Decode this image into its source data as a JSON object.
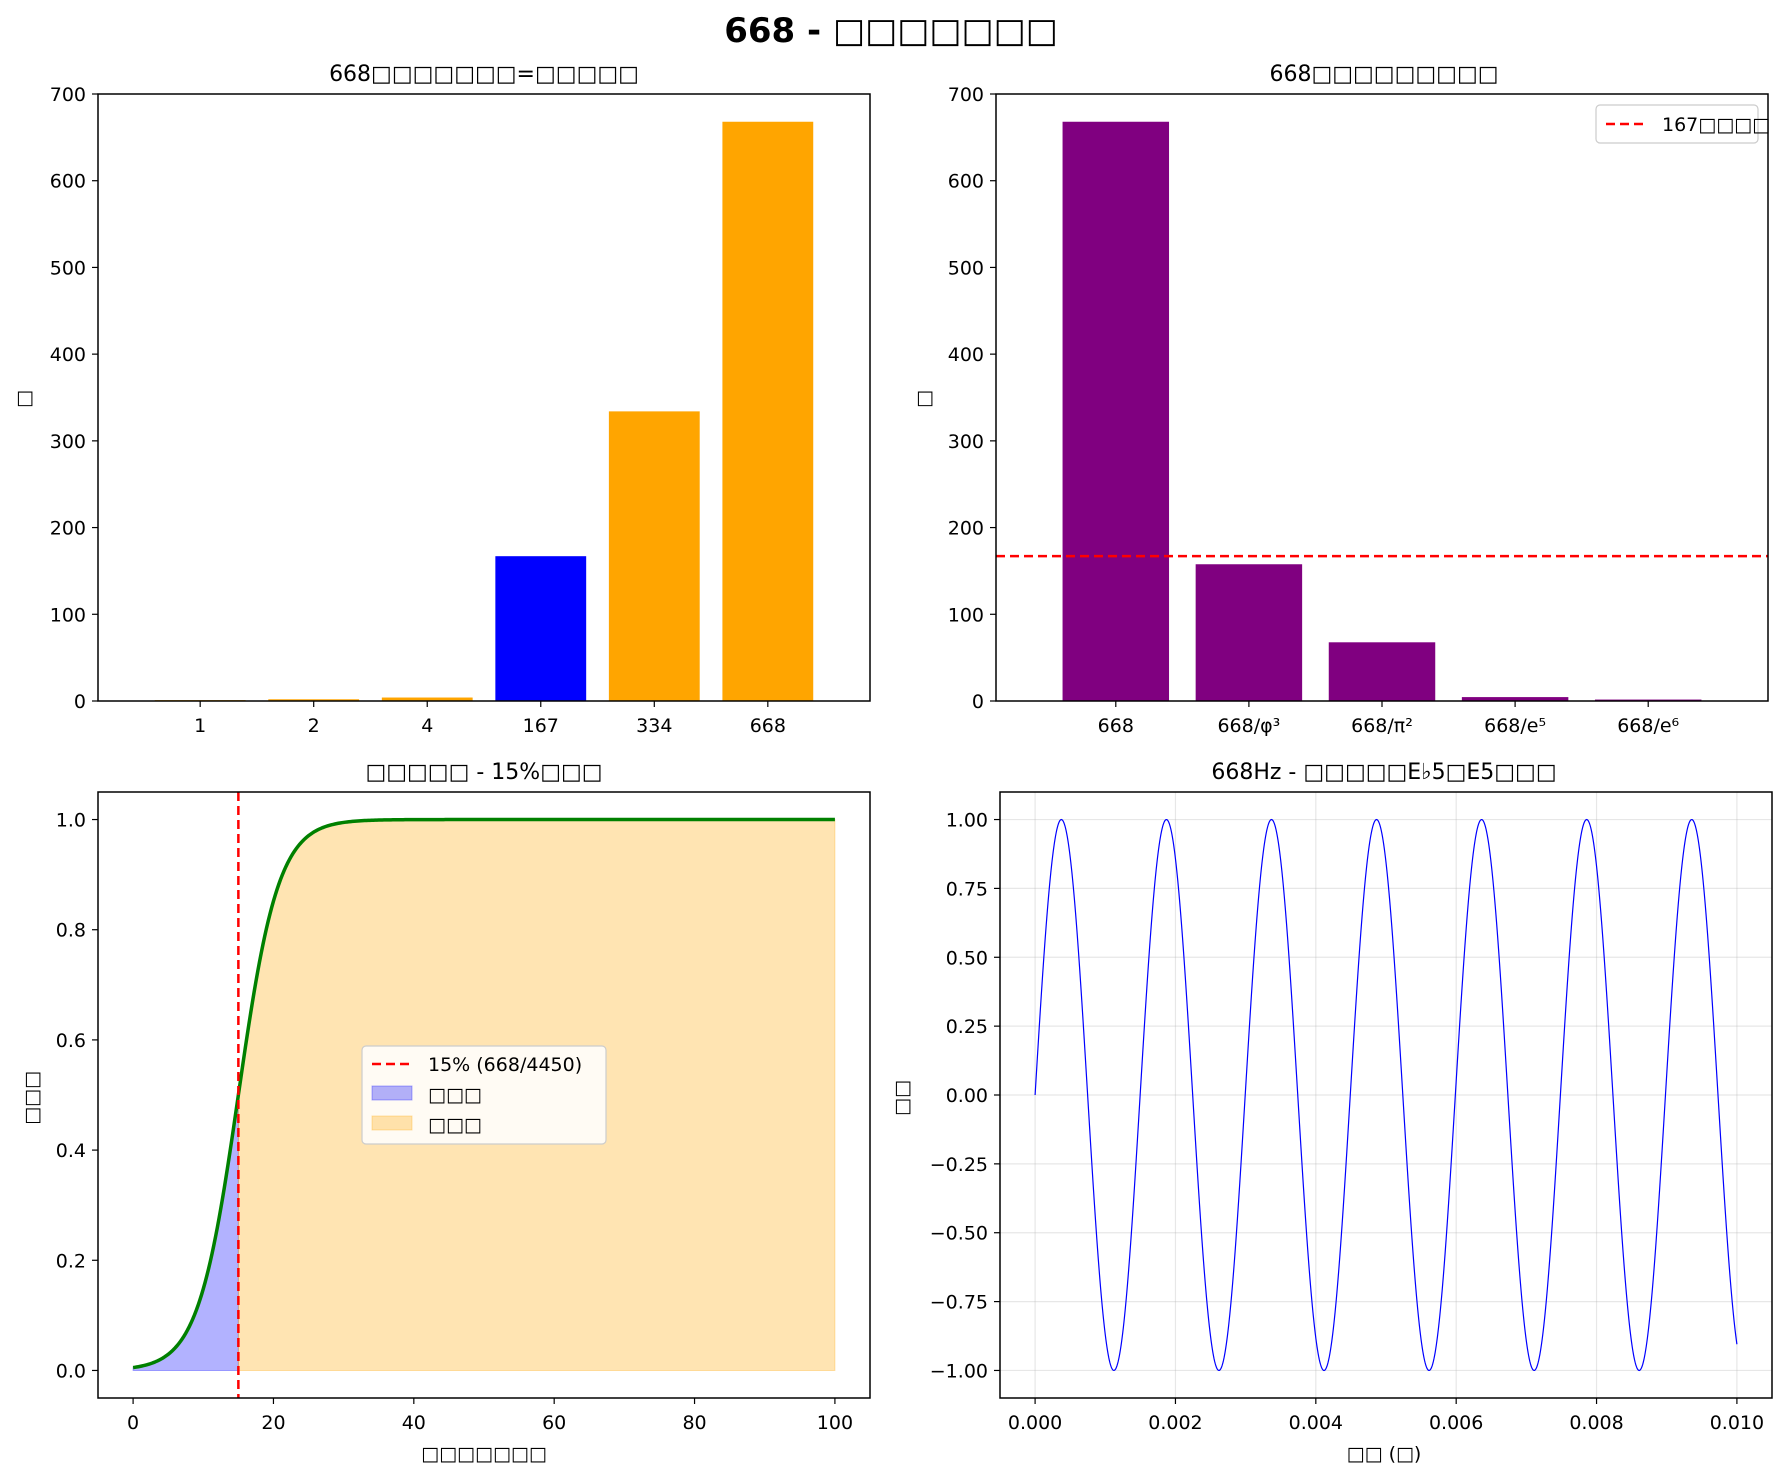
{
  "figure": {
    "suptitle": "668 - □□□□□□□"
  },
  "chart_data": [
    {
      "type": "bar",
      "title": "668□□□□□□□=□□□□□",
      "xlabel": "",
      "ylabel": "□",
      "categories": [
        "1",
        "2",
        "4",
        "167",
        "334",
        "668"
      ],
      "values": [
        1,
        2,
        4,
        167,
        334,
        668
      ],
      "colors": [
        "#ffa500",
        "#ffa500",
        "#ffa500",
        "#0000ff",
        "#ffa500",
        "#ffa500"
      ],
      "ylim": [
        0,
        700
      ],
      "yticks": [
        0,
        100,
        200,
        300,
        400,
        500,
        600,
        700
      ],
      "grid": false
    },
    {
      "type": "bar",
      "title": "668□□□□□□□□□",
      "xlabel": "",
      "ylabel": "□",
      "categories": [
        "668",
        "668/φ³",
        "668/π²",
        "668/e⁵",
        "668/e⁶"
      ],
      "values": [
        668,
        157.7,
        67.7,
        4.5,
        1.66
      ],
      "colors": [
        "#800080",
        "#800080",
        "#800080",
        "#800080",
        "#800080"
      ],
      "ylim": [
        0,
        700
      ],
      "yticks": [
        0,
        100,
        200,
        300,
        400,
        500,
        600,
        700
      ],
      "reference_line": {
        "value": 167,
        "label": "167□□□□",
        "color": "#ff0000",
        "style": "dashed"
      },
      "legend": "top-right",
      "grid": false
    },
    {
      "type": "line",
      "title": "□□□□□ - 15%□□□",
      "xlabel": "□□□□□□□",
      "ylabel": "□□□",
      "xlim": [
        -5,
        105
      ],
      "ylim": [
        -0.05,
        1.05
      ],
      "xticks": [
        0,
        20,
        40,
        60,
        80,
        100
      ],
      "yticks": [
        0.0,
        0.2,
        0.4,
        0.6,
        0.8,
        1.0
      ],
      "curve": {
        "kind": "logistic",
        "midpoint": 15,
        "steepness": 0.35,
        "x_range": [
          0,
          100
        ],
        "color": "#008000"
      },
      "vline": {
        "value": 15,
        "label": "15% (668/4450)",
        "color": "#ff0000",
        "style": "dashed"
      },
      "fills": [
        {
          "label": "□□□",
          "from": 0,
          "to": 15,
          "color": "#0000ff",
          "alpha": 0.3
        },
        {
          "label": "□□□",
          "from": 15,
          "to": 100,
          "color": "#ffa500",
          "alpha": 0.3
        }
      ],
      "legend": "center",
      "grid": false
    },
    {
      "type": "line",
      "title": "668Hz - □□□□□E♭5□E5□□□",
      "xlabel": "□□ (□)",
      "ylabel": "□□",
      "frequency_hz": 668,
      "x_range": [
        0,
        0.01
      ],
      "xlim": [
        -0.0005,
        0.0105
      ],
      "ylim": [
        -1.1,
        1.1
      ],
      "xticks": [
        "0.000",
        "0.002",
        "0.004",
        "0.006",
        "0.008",
        "0.010"
      ],
      "yticks": [
        "1.00",
        "0.75",
        "0.50",
        "0.25",
        "0.00",
        "−0.25",
        "−0.50",
        "−0.75",
        "−1.00"
      ],
      "color": "#0000ff",
      "grid": true
    }
  ]
}
